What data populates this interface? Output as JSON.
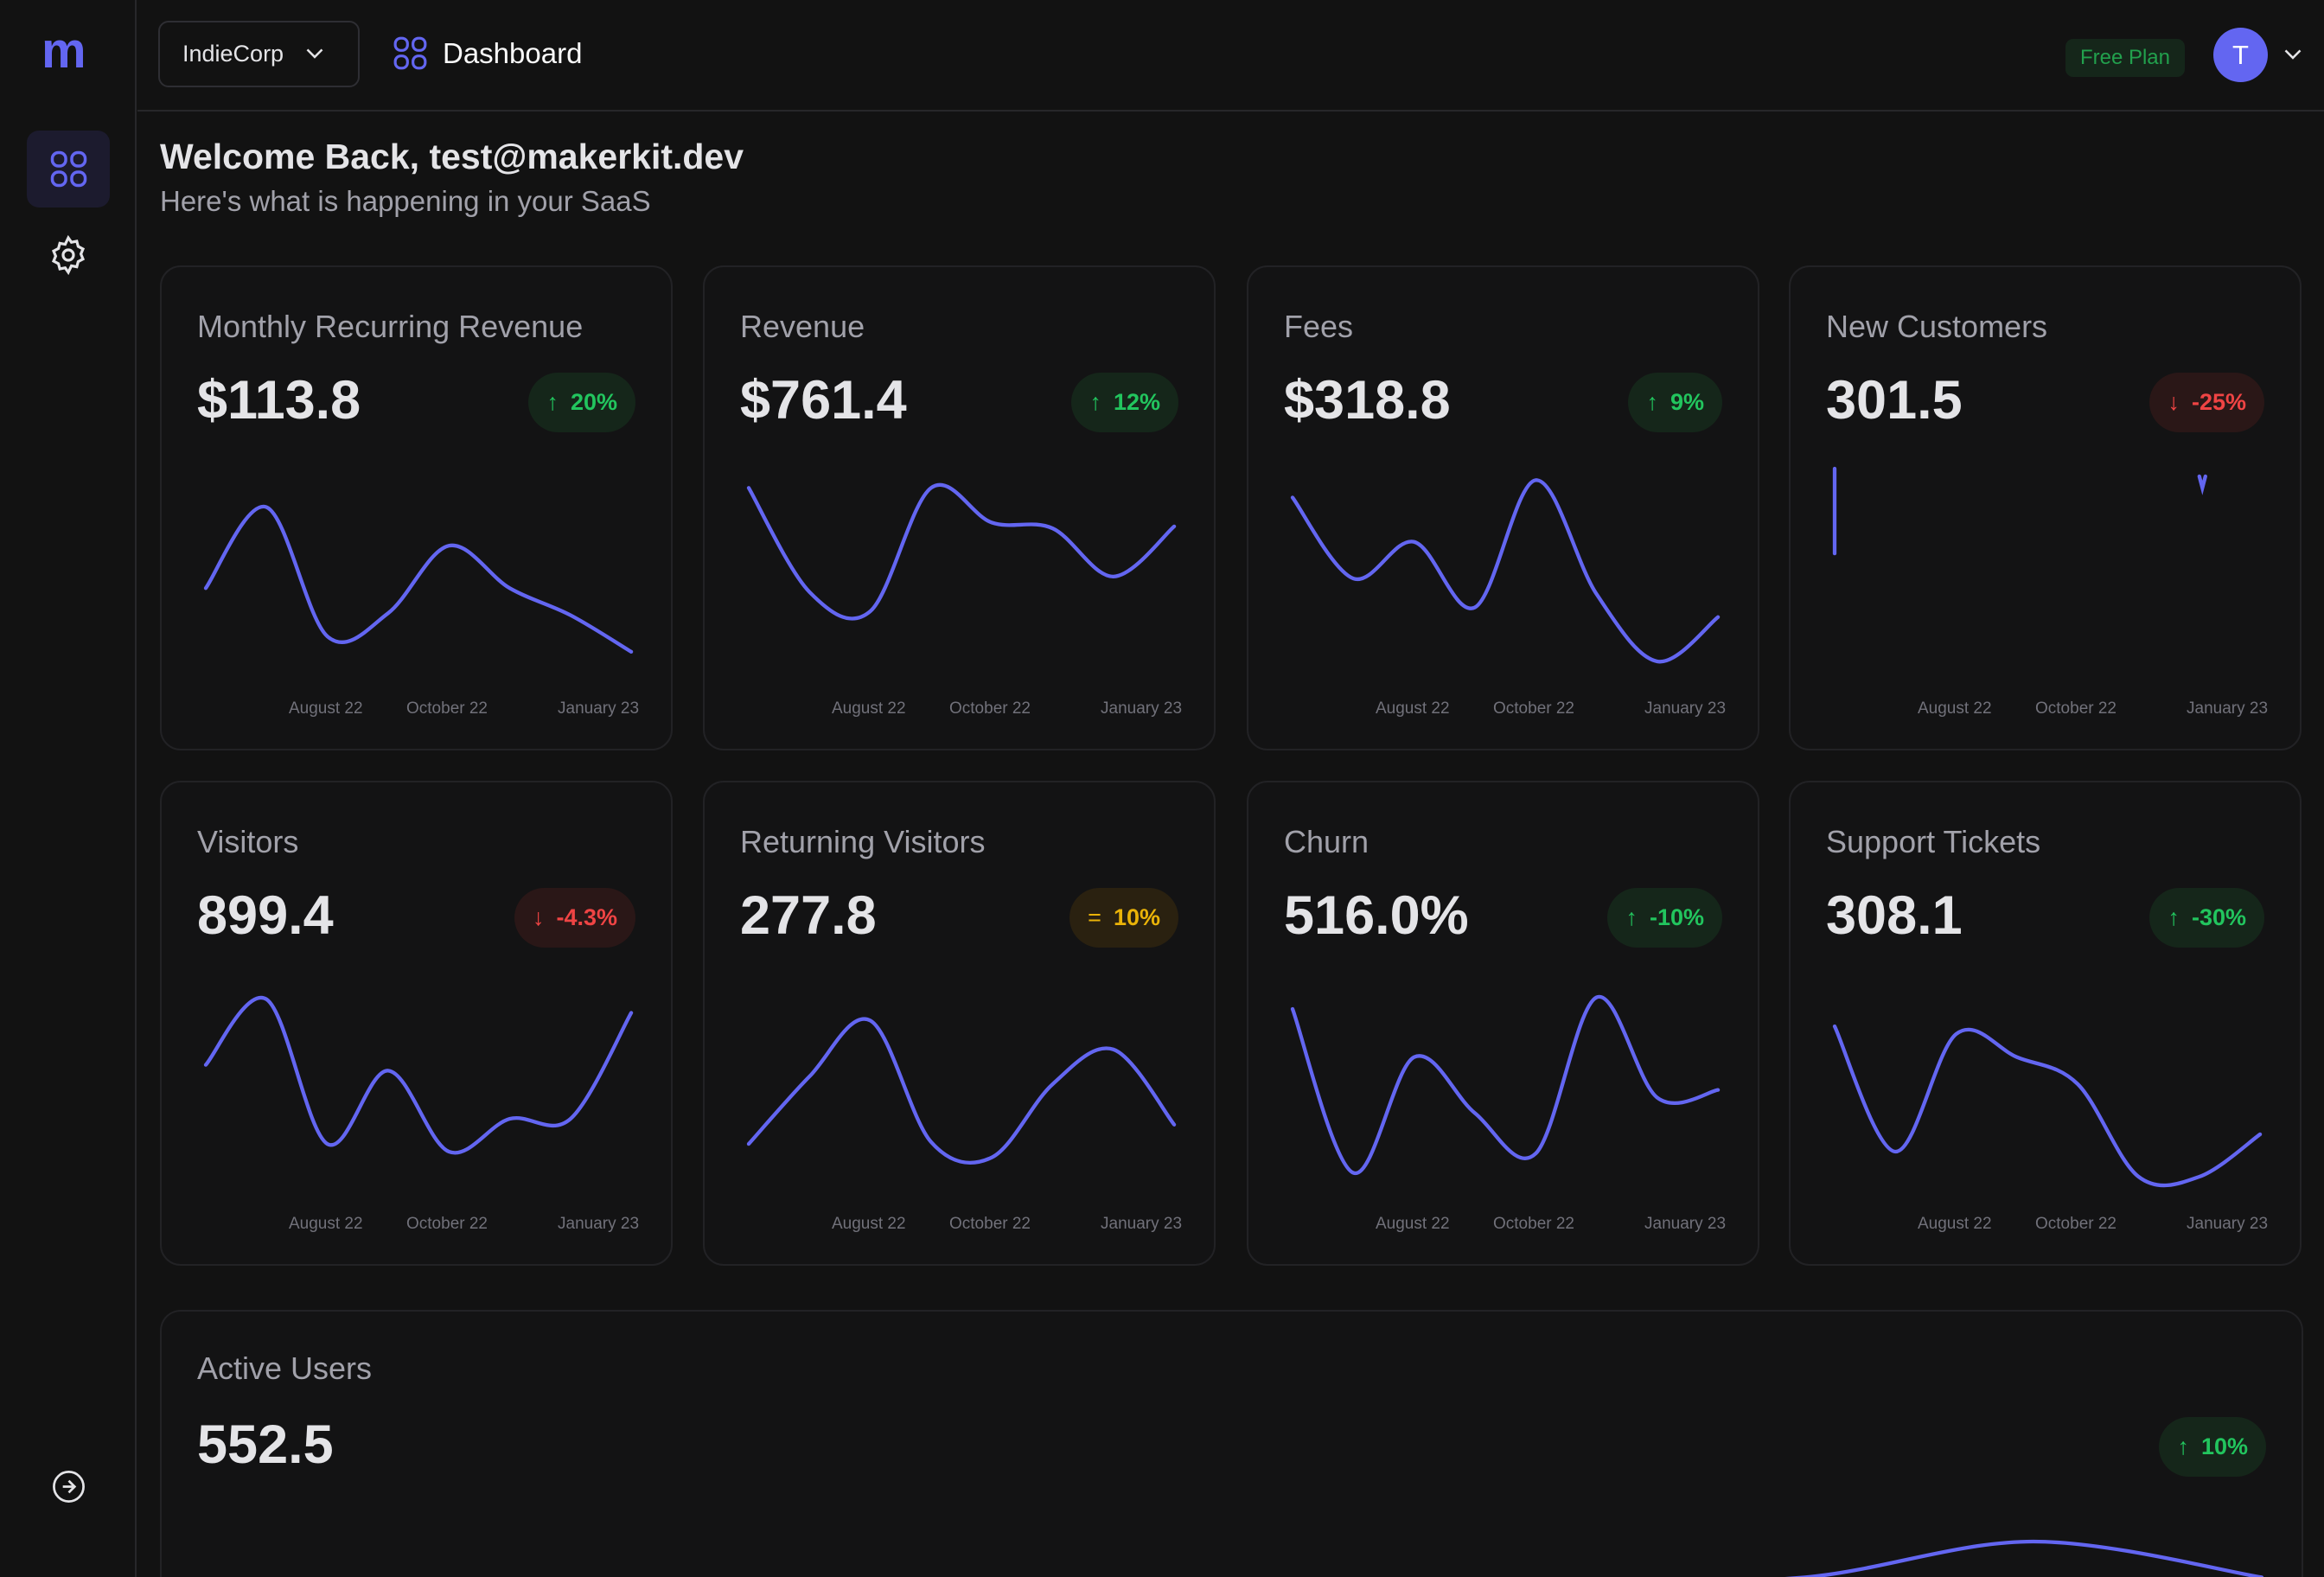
{
  "app": {
    "logo": "m",
    "accent": "#6366f1"
  },
  "sidebar": {
    "items": [
      {
        "icon": "dashboard-grid-icon",
        "active": true
      },
      {
        "icon": "gear-icon"
      }
    ],
    "collapse_icon": "arrow-right-circle-icon"
  },
  "header": {
    "org": "IndieCorp",
    "breadcrumb": "Dashboard",
    "plan": "Free Plan",
    "avatar_initial": "T"
  },
  "welcome": {
    "title": "Welcome Back, test@makerkit.dev",
    "subtitle": "Here's what is happening in your SaaS"
  },
  "ticks": [
    "August 22",
    "October 22",
    "January 23"
  ],
  "cards": [
    {
      "title": "Monthly Recurring Revenue",
      "value": "$113.8",
      "badge": "20%",
      "trend": "up"
    },
    {
      "title": "Revenue",
      "value": "$761.4",
      "badge": "12%",
      "trend": "up"
    },
    {
      "title": "Fees",
      "value": "$318.8",
      "badge": "9%",
      "trend": "up"
    },
    {
      "title": "New Customers",
      "value": "301.5",
      "badge": "-25%",
      "trend": "down"
    },
    {
      "title": "Visitors",
      "value": "899.4",
      "badge": "-4.3%",
      "trend": "down"
    },
    {
      "title": "Returning Visitors",
      "value": "277.8",
      "badge": "10%",
      "trend": "flat"
    },
    {
      "title": "Churn",
      "value": "516.0%",
      "badge": "-10%",
      "trend": "up"
    },
    {
      "title": "Support Tickets",
      "value": "308.1",
      "badge": "-30%",
      "trend": "up"
    }
  ],
  "active_users": {
    "title": "Active Users",
    "value": "552.5",
    "badge": "10%",
    "trend": "up"
  },
  "chart_data": [
    {
      "type": "line",
      "title": "Monthly Recurring Revenue",
      "x_ticks": [
        "August 22",
        "October 22",
        "January 23"
      ],
      "values": [
        38,
        80,
        13,
        25,
        60,
        38,
        24,
        5
      ]
    },
    {
      "type": "line",
      "title": "Revenue",
      "x_ticks": [
        "August 22",
        "October 22",
        "January 23"
      ],
      "values": [
        90,
        36,
        26,
        90,
        72,
        69,
        44,
        70
      ]
    },
    {
      "type": "line",
      "title": "Fees",
      "x_ticks": [
        "August 22",
        "October 22",
        "January 23"
      ],
      "values": [
        85,
        43,
        62,
        28,
        94,
        35,
        0,
        23
      ]
    },
    {
      "type": "line",
      "title": "New Customers",
      "x_ticks": [
        "August 22",
        "October 22",
        "January 23"
      ],
      "segments": [
        [
          [
            0,
            100
          ],
          [
            0,
            56
          ]
        ],
        [
          [
            6,
            96
          ],
          [
            6.05,
            90
          ],
          [
            6.1,
            96
          ]
        ]
      ]
    },
    {
      "type": "line",
      "title": "Visitors",
      "x_ticks": [
        "August 22",
        "October 22",
        "January 23"
      ],
      "values": [
        58,
        92,
        17,
        55,
        13,
        30,
        30,
        85
      ]
    },
    {
      "type": "line",
      "title": "Returning Visitors",
      "x_ticks": [
        "August 22",
        "October 22",
        "January 23"
      ],
      "values": [
        17,
        52,
        81,
        18,
        10,
        48,
        66,
        27
      ]
    },
    {
      "type": "line",
      "title": "Churn",
      "x_ticks": [
        "August 22",
        "October 22",
        "January 23"
      ],
      "values": [
        87,
        2,
        62,
        33,
        12,
        93,
        41,
        45
      ]
    },
    {
      "type": "line",
      "title": "Support Tickets",
      "x_ticks": [
        "August 22",
        "October 22",
        "January 23"
      ],
      "values": [
        78,
        13,
        74,
        62,
        48,
        0,
        0,
        22
      ]
    },
    {
      "type": "line",
      "title": "Active Users",
      "values": [
        0,
        0,
        0,
        0,
        0,
        0,
        0,
        10,
        100,
        10
      ]
    }
  ]
}
